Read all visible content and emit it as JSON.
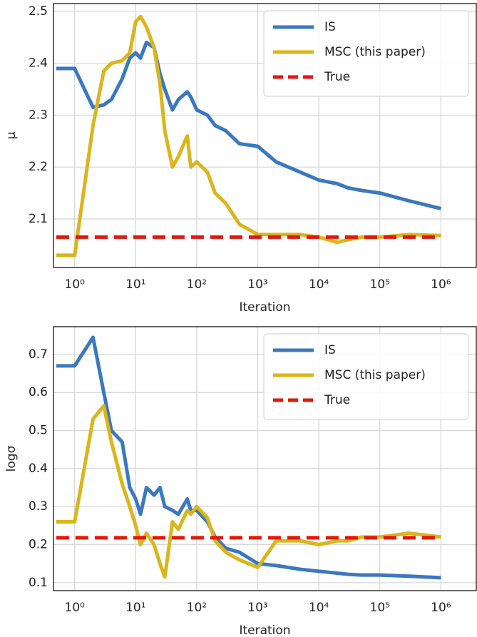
{
  "chart_data": [
    {
      "type": "line",
      "xlabel": "Iteration",
      "ylabel": "μ",
      "xscale": "log",
      "grid": true,
      "legend": "upper right",
      "xlim": [
        0.45,
        3800000
      ],
      "ylim": [
        2.0065,
        2.515
      ],
      "xticks": [
        {
          "value": 1,
          "label": "10⁰"
        },
        {
          "value": 10,
          "label": "10¹"
        },
        {
          "value": 100,
          "label": "10²"
        },
        {
          "value": 1000,
          "label": "10³"
        },
        {
          "value": 10000,
          "label": "10⁴"
        },
        {
          "value": 100000,
          "label": "10⁵"
        },
        {
          "value": 1000000,
          "label": "10⁶"
        }
      ],
      "yticks": [
        2.1,
        2.2,
        2.3,
        2.4,
        2.5
      ],
      "x": [
        0.5,
        1,
        2,
        3,
        4,
        6,
        8,
        10,
        12,
        15,
        20,
        25,
        30,
        40,
        50,
        70,
        80,
        100,
        150,
        200,
        300,
        500,
        1000,
        2000,
        5000,
        10000,
        20000,
        30000,
        50000,
        100000,
        300000,
        1000000
      ],
      "series": [
        {
          "name": "IS",
          "color": "#3a78c0",
          "dashed": false,
          "values": [
            2.39,
            2.39,
            2.315,
            2.32,
            2.33,
            2.37,
            2.41,
            2.42,
            2.41,
            2.44,
            2.43,
            2.38,
            2.35,
            2.31,
            2.33,
            2.345,
            2.335,
            2.31,
            2.3,
            2.28,
            2.27,
            2.245,
            2.24,
            2.21,
            2.19,
            2.175,
            2.168,
            2.16,
            2.155,
            2.15,
            2.135,
            2.12
          ]
        },
        {
          "name": "MSC (this paper)",
          "color": "#dbb51c",
          "dashed": false,
          "values": [
            2.03,
            2.03,
            2.28,
            2.385,
            2.4,
            2.405,
            2.42,
            2.48,
            2.49,
            2.47,
            2.43,
            2.36,
            2.27,
            2.2,
            2.22,
            2.26,
            2.2,
            2.21,
            2.19,
            2.15,
            2.13,
            2.09,
            2.07,
            2.07,
            2.07,
            2.065,
            2.055,
            2.06,
            2.065,
            2.065,
            2.07,
            2.068
          ]
        },
        {
          "name": "True",
          "color": "#e3170a",
          "dashed": true,
          "values": [
            2.065,
            2.065,
            2.065,
            2.065,
            2.065,
            2.065,
            2.065,
            2.065,
            2.065,
            2.065,
            2.065,
            2.065,
            2.065,
            2.065,
            2.065,
            2.065,
            2.065,
            2.065,
            2.065,
            2.065,
            2.065,
            2.065,
            2.065,
            2.065,
            2.065,
            2.065,
            2.065,
            2.065,
            2.065,
            2.065,
            2.065,
            2.065
          ]
        }
      ]
    },
    {
      "type": "line",
      "xlabel": "Iteration",
      "ylabel": "logσ",
      "xscale": "log",
      "grid": true,
      "legend": "upper right",
      "xlim": [
        0.45,
        3800000
      ],
      "ylim": [
        0.079,
        0.773
      ],
      "xticks": [
        {
          "value": 1,
          "label": "10⁰"
        },
        {
          "value": 10,
          "label": "10¹"
        },
        {
          "value": 100,
          "label": "10²"
        },
        {
          "value": 1000,
          "label": "10³"
        },
        {
          "value": 10000,
          "label": "10⁴"
        },
        {
          "value": 100000,
          "label": "10⁵"
        },
        {
          "value": 1000000,
          "label": "10⁶"
        }
      ],
      "yticks": [
        0.1,
        0.2,
        0.3,
        0.4,
        0.5,
        0.6,
        0.7
      ],
      "x": [
        0.5,
        1,
        2,
        3,
        4,
        6,
        8,
        10,
        12,
        15,
        20,
        25,
        30,
        40,
        50,
        70,
        80,
        100,
        150,
        200,
        300,
        500,
        1000,
        2000,
        5000,
        10000,
        20000,
        30000,
        50000,
        100000,
        300000,
        1000000
      ],
      "series": [
        {
          "name": "IS",
          "color": "#3a78c0",
          "dashed": false,
          "values": [
            0.67,
            0.67,
            0.745,
            0.6,
            0.5,
            0.47,
            0.35,
            0.32,
            0.28,
            0.35,
            0.33,
            0.35,
            0.3,
            0.29,
            0.28,
            0.32,
            0.29,
            0.29,
            0.26,
            0.22,
            0.19,
            0.18,
            0.15,
            0.145,
            0.135,
            0.13,
            0.125,
            0.122,
            0.12,
            0.12,
            0.117,
            0.113
          ]
        },
        {
          "name": "MSC (this paper)",
          "color": "#dbb51c",
          "dashed": false,
          "values": [
            0.26,
            0.26,
            0.53,
            0.565,
            0.47,
            0.36,
            0.3,
            0.25,
            0.2,
            0.23,
            0.2,
            0.15,
            0.115,
            0.26,
            0.24,
            0.29,
            0.28,
            0.3,
            0.27,
            0.21,
            0.18,
            0.16,
            0.14,
            0.21,
            0.21,
            0.2,
            0.21,
            0.21,
            0.22,
            0.22,
            0.23,
            0.22
          ]
        },
        {
          "name": "True",
          "color": "#e3170a",
          "dashed": true,
          "values": [
            0.218,
            0.218,
            0.218,
            0.218,
            0.218,
            0.218,
            0.218,
            0.218,
            0.218,
            0.218,
            0.218,
            0.218,
            0.218,
            0.218,
            0.218,
            0.218,
            0.218,
            0.218,
            0.218,
            0.218,
            0.218,
            0.218,
            0.218,
            0.218,
            0.218,
            0.218,
            0.218,
            0.218,
            0.218,
            0.218,
            0.218,
            0.218
          ]
        }
      ]
    }
  ]
}
